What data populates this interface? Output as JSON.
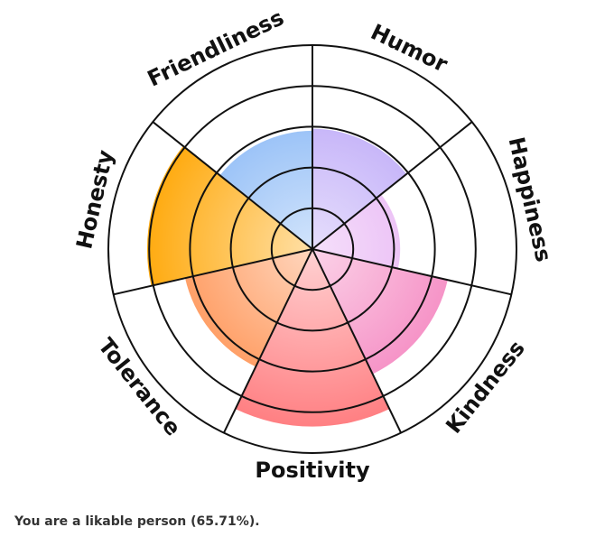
{
  "chart_data": {
    "type": "polar",
    "categories": [
      "Humor",
      "Happiness",
      "Kindness",
      "Positivity",
      "Tolerance",
      "Honesty",
      "Friendliness"
    ],
    "values": [
      59,
      43,
      68,
      87,
      64,
      81,
      58
    ],
    "colors": [
      "#b8a2f7",
      "#e3a6f2",
      "#f480bd",
      "#ff7d80",
      "#ff8a45",
      "#ffa500",
      "#7fb2f5"
    ],
    "rlim": [
      0,
      100
    ],
    "rticks": [
      20,
      40,
      60,
      80,
      100
    ],
    "grid": true
  },
  "note": "You are a likable person (65.71%)."
}
